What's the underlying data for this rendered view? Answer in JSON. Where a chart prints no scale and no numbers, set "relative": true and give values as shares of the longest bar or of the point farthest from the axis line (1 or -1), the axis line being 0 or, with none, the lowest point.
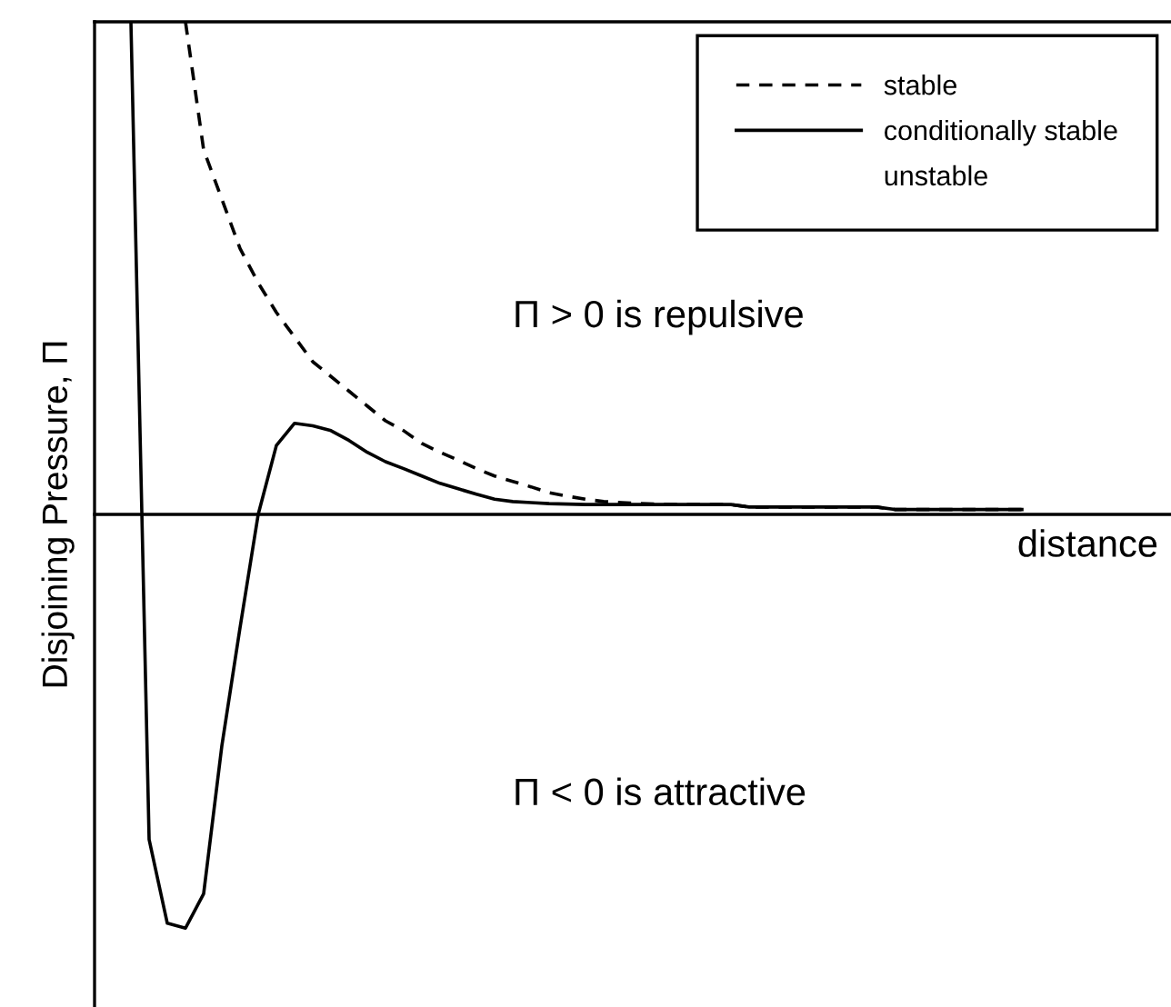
{
  "chart_data": {
    "type": "line",
    "relative": true,
    "ylabel": "Disjoining Pressure, Π",
    "xlabel": "distance",
    "categories": [
      null,
      null,
      null,
      null,
      null,
      null,
      null,
      null,
      null,
      null,
      null,
      null,
      null,
      null,
      null,
      null,
      null,
      null,
      null,
      null,
      null,
      null,
      null,
      null,
      null,
      null,
      null,
      null,
      null,
      null,
      null,
      null,
      null,
      null,
      null,
      null,
      null,
      null,
      null,
      null,
      null,
      null,
      null,
      null,
      null,
      null,
      null,
      null,
      null,
      null,
      null
    ],
    "series": [
      {
        "name": "stable",
        "color": "#000000",
        "line_style": "dashed",
        "values": [
          null,
          null,
          null,
          null,
          1.0,
          0.74,
          0.64,
          0.54,
          0.47,
          0.41,
          0.36,
          0.31,
          0.28,
          0.25,
          0.22,
          0.19,
          0.17,
          0.144,
          0.126,
          0.11,
          0.093,
          0.078,
          0.067,
          0.056,
          0.044,
          0.037,
          0.031,
          0.026,
          0.024,
          0.022,
          0.021,
          0.02,
          0.02,
          0.02,
          0.02,
          0.015,
          0.015,
          0.015,
          0.015,
          0.015,
          0.015,
          0.015,
          0.015,
          0.01,
          0.01,
          0.01,
          0.01,
          0.01,
          0.01,
          0.01,
          0.01
        ]
      },
      {
        "name": "conditionally stable",
        "color": "#000000",
        "line_style": "solid",
        "values": [
          null,
          1.0,
          -0.66,
          -0.83,
          -0.84,
          -0.77,
          -0.47,
          -0.23,
          0.0,
          0.14,
          0.185,
          0.18,
          0.17,
          0.15,
          0.126,
          0.107,
          0.093,
          0.078,
          0.063,
          0.052,
          0.041,
          0.031,
          0.026,
          0.024,
          0.022,
          0.021,
          0.02,
          0.02,
          0.02,
          0.02,
          0.02,
          0.02,
          0.02,
          0.02,
          0.02,
          0.015,
          0.015,
          0.015,
          0.015,
          0.015,
          0.015,
          0.015,
          0.015,
          0.01,
          0.01,
          0.01,
          0.01,
          0.01,
          0.01,
          0.01,
          0.01
        ]
      },
      {
        "name": "unstable",
        "values": [
          null,
          null,
          null,
          null,
          null,
          null,
          null,
          null,
          null,
          null,
          null,
          null,
          null,
          null,
          null,
          null,
          null,
          null,
          null,
          null,
          null,
          null,
          null,
          null,
          null,
          null,
          null,
          null,
          null,
          null,
          null,
          null,
          null,
          null,
          null,
          null,
          null,
          null,
          null,
          null,
          null,
          null,
          null,
          null,
          null,
          null,
          null,
          null,
          null,
          null,
          null
        ]
      }
    ],
    "annotations": [
      "Π > 0 is repulsive",
      "Π < 0 is attractive"
    ],
    "legend": "top right"
  }
}
